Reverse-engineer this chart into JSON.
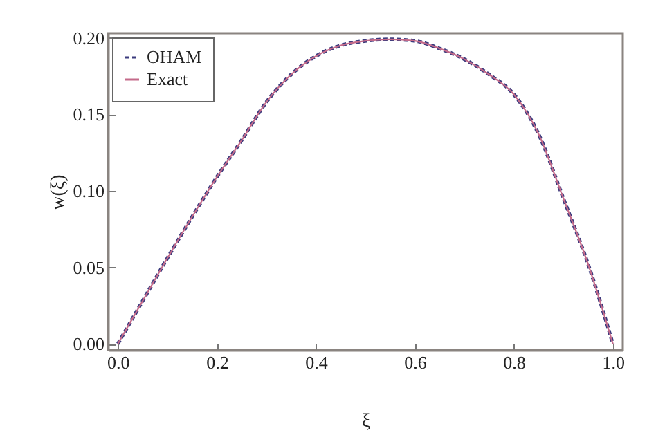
{
  "chart_data": {
    "type": "line",
    "xlabel": "ξ",
    "ylabel": "w(ξ)",
    "x": [
      0,
      0.05,
      0.1,
      0.15,
      0.2,
      0.25,
      0.3,
      0.35,
      0.4,
      0.45,
      0.5,
      0.55,
      0.6,
      0.65,
      0.7,
      0.75,
      0.8,
      0.85,
      0.9,
      0.95,
      1
    ],
    "series": [
      {
        "name": "OHAM",
        "color": "#3b3b7d",
        "line_style": "dashed",
        "values": [
          0,
          0.028,
          0.056,
          0.083,
          0.109,
          0.133,
          0.158,
          0.176,
          0.188,
          0.195,
          0.198,
          0.199,
          0.198,
          0.193,
          0.186,
          0.176,
          0.163,
          0.137,
          0.095,
          0.052,
          0
        ]
      },
      {
        "name": "Exact",
        "color": "#c46a8a",
        "line_style": "solid",
        "values": [
          0,
          0.028,
          0.056,
          0.083,
          0.109,
          0.133,
          0.158,
          0.176,
          0.188,
          0.195,
          0.198,
          0.199,
          0.198,
          0.193,
          0.186,
          0.176,
          0.163,
          0.137,
          0.095,
          0.052,
          0
        ]
      }
    ],
    "xlim": [
      -0.02,
      1.02
    ],
    "ylim": [
      -0.004,
      0.203
    ],
    "xticks": [
      {
        "value": 0,
        "label": "0.0"
      },
      0.2,
      0.4,
      0.6,
      0.8,
      {
        "value": 1,
        "label": "1.0"
      }
    ],
    "yticks": [
      {
        "value": 0,
        "label": "0.00"
      },
      0.05,
      {
        "value": 0.1,
        "label": "0.10"
      },
      0.15,
      {
        "value": 0.2,
        "label": "0.20"
      }
    ],
    "legend": "top left",
    "grid": false
  }
}
